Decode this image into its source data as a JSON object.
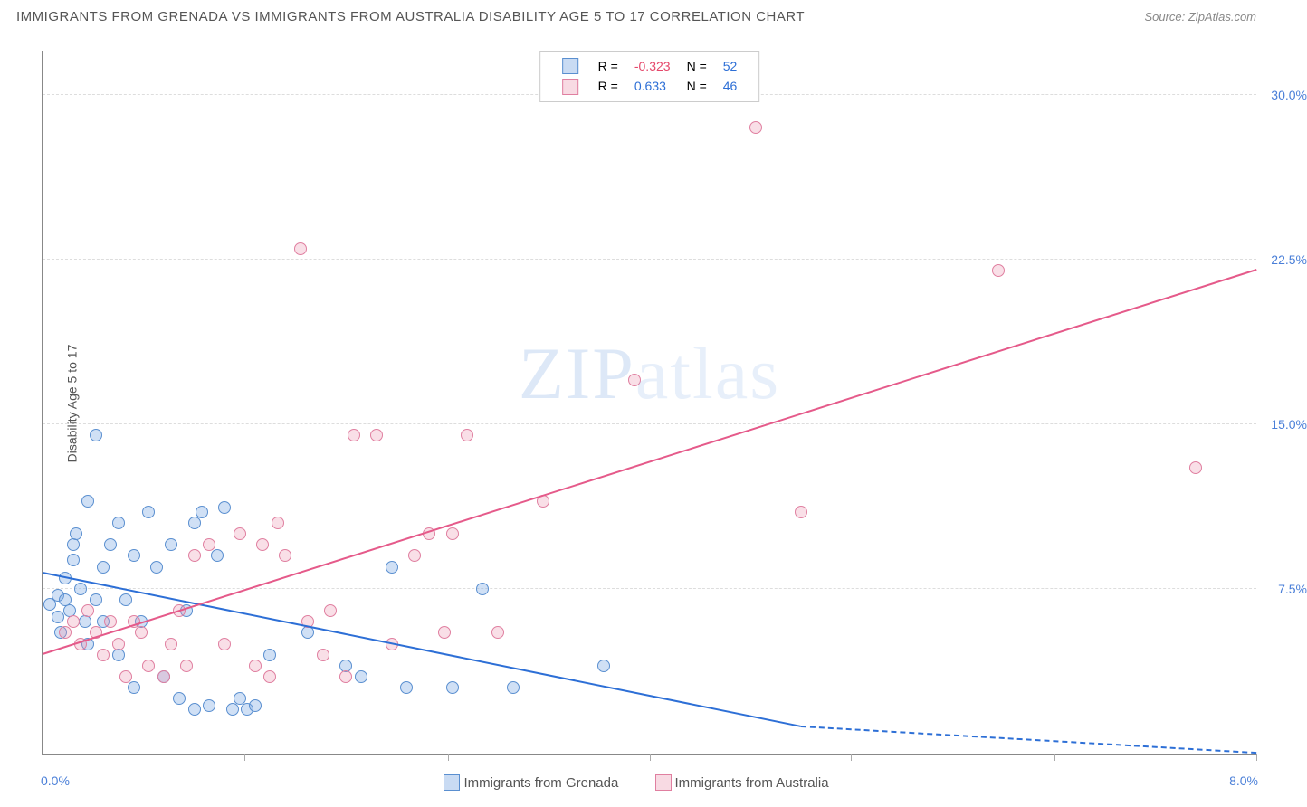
{
  "title": "IMMIGRANTS FROM GRENADA VS IMMIGRANTS FROM AUSTRALIA DISABILITY AGE 5 TO 17 CORRELATION CHART",
  "source": "Source: ZipAtlas.com",
  "ylabel": "Disability Age 5 to 17",
  "watermark_a": "ZIP",
  "watermark_b": "atlas",
  "chart": {
    "type": "scatter",
    "xlim": [
      0,
      8.0
    ],
    "ylim": [
      0,
      32
    ],
    "x_min_label": "0.0%",
    "x_max_label": "8.0%",
    "y_ticks": [
      7.5,
      15.0,
      22.5,
      30.0
    ],
    "y_tick_labels": [
      "7.5%",
      "15.0%",
      "22.5%",
      "30.0%"
    ],
    "x_tick_positions": [
      0,
      1.33,
      2.67,
      4.0,
      5.33,
      6.67,
      8.0
    ],
    "series": [
      {
        "name": "Immigrants from Grenada",
        "color_fill": "rgba(120,165,225,0.35)",
        "color_stroke": "#5a8fd0",
        "trend_color": "#2d6fd6",
        "R": "-0.323",
        "N": "52",
        "trend": {
          "x1": 0,
          "y1": 8.2,
          "x2": 5.0,
          "y2": 1.2,
          "dash_from_x": 5.0,
          "dash_to_x": 8.0,
          "dash_to_y": 0
        },
        "points": [
          [
            0.05,
            6.8
          ],
          [
            0.1,
            7.2
          ],
          [
            0.1,
            6.2
          ],
          [
            0.12,
            5.5
          ],
          [
            0.15,
            8.0
          ],
          [
            0.15,
            7.0
          ],
          [
            0.18,
            6.5
          ],
          [
            0.2,
            9.5
          ],
          [
            0.2,
            8.8
          ],
          [
            0.22,
            10.0
          ],
          [
            0.25,
            7.5
          ],
          [
            0.28,
            6.0
          ],
          [
            0.3,
            5.0
          ],
          [
            0.3,
            11.5
          ],
          [
            0.35,
            14.5
          ],
          [
            0.35,
            7.0
          ],
          [
            0.4,
            8.5
          ],
          [
            0.4,
            6.0
          ],
          [
            0.45,
            9.5
          ],
          [
            0.5,
            10.5
          ],
          [
            0.5,
            4.5
          ],
          [
            0.55,
            7.0
          ],
          [
            0.6,
            9.0
          ],
          [
            0.6,
            3.0
          ],
          [
            0.65,
            6.0
          ],
          [
            0.7,
            11.0
          ],
          [
            0.75,
            8.5
          ],
          [
            0.8,
            3.5
          ],
          [
            0.85,
            9.5
          ],
          [
            0.9,
            2.5
          ],
          [
            0.95,
            6.5
          ],
          [
            1.0,
            10.5
          ],
          [
            1.0,
            2.0
          ],
          [
            1.05,
            11.0
          ],
          [
            1.1,
            2.2
          ],
          [
            1.15,
            9.0
          ],
          [
            1.2,
            11.2
          ],
          [
            1.25,
            2.0
          ],
          [
            1.3,
            2.5
          ],
          [
            1.35,
            2.0
          ],
          [
            1.4,
            2.2
          ],
          [
            1.5,
            4.5
          ],
          [
            1.75,
            5.5
          ],
          [
            2.0,
            4.0
          ],
          [
            2.1,
            3.5
          ],
          [
            2.3,
            8.5
          ],
          [
            2.4,
            3.0
          ],
          [
            2.7,
            3.0
          ],
          [
            2.9,
            7.5
          ],
          [
            3.1,
            3.0
          ],
          [
            3.7,
            4.0
          ]
        ]
      },
      {
        "name": "Immigrants from Australia",
        "color_fill": "rgba(235,150,175,0.3)",
        "color_stroke": "#e07fa0",
        "trend_color": "#e55a8a",
        "R": "0.633",
        "N": "46",
        "trend": {
          "x1": 0,
          "y1": 4.5,
          "x2": 8.0,
          "y2": 22.0
        },
        "points": [
          [
            0.15,
            5.5
          ],
          [
            0.2,
            6.0
          ],
          [
            0.25,
            5.0
          ],
          [
            0.3,
            6.5
          ],
          [
            0.35,
            5.5
          ],
          [
            0.4,
            4.5
          ],
          [
            0.45,
            6.0
          ],
          [
            0.5,
            5.0
          ],
          [
            0.55,
            3.5
          ],
          [
            0.6,
            6.0
          ],
          [
            0.65,
            5.5
          ],
          [
            0.7,
            4.0
          ],
          [
            0.8,
            3.5
          ],
          [
            0.85,
            5.0
          ],
          [
            0.9,
            6.5
          ],
          [
            0.95,
            4.0
          ],
          [
            1.0,
            9.0
          ],
          [
            1.1,
            9.5
          ],
          [
            1.2,
            5.0
          ],
          [
            1.3,
            10.0
          ],
          [
            1.4,
            4.0
          ],
          [
            1.45,
            9.5
          ],
          [
            1.5,
            3.5
          ],
          [
            1.55,
            10.5
          ],
          [
            1.6,
            9.0
          ],
          [
            1.7,
            23.0
          ],
          [
            1.75,
            6.0
          ],
          [
            1.85,
            4.5
          ],
          [
            1.9,
            6.5
          ],
          [
            2.0,
            3.5
          ],
          [
            2.05,
            14.5
          ],
          [
            2.2,
            14.5
          ],
          [
            2.3,
            5.0
          ],
          [
            2.45,
            9.0
          ],
          [
            2.55,
            10.0
          ],
          [
            2.65,
            5.5
          ],
          [
            2.7,
            10.0
          ],
          [
            2.8,
            14.5
          ],
          [
            3.0,
            5.5
          ],
          [
            3.3,
            11.5
          ],
          [
            3.9,
            17.0
          ],
          [
            4.7,
            28.5
          ],
          [
            5.0,
            11.0
          ],
          [
            6.3,
            22.0
          ],
          [
            7.6,
            13.0
          ]
        ]
      }
    ],
    "legend_bottom": [
      {
        "swatch": "blue",
        "label": "Immigrants from Grenada"
      },
      {
        "swatch": "pink",
        "label": "Immigrants from Australia"
      }
    ]
  }
}
